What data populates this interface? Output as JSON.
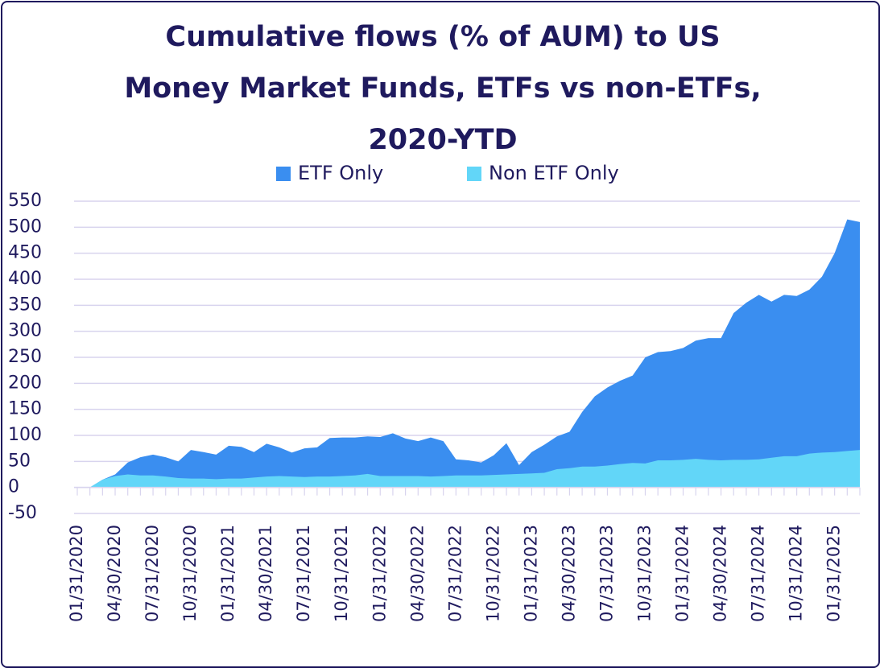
{
  "chart_data": {
    "type": "area",
    "title": "Cumulative flows (% of AUM) to US Money Market Funds, ETFs vs non-ETFs, 2020-YTD",
    "categories": [
      "01/31/2020",
      null,
      null,
      "04/30/2020",
      null,
      null,
      "07/31/2020",
      null,
      null,
      "10/31/2020",
      null,
      null,
      "01/31/2021",
      null,
      null,
      "04/30/2021",
      null,
      null,
      "07/31/2021",
      null,
      null,
      "10/31/2021",
      null,
      null,
      "01/31/2022",
      null,
      null,
      "04/30/2022",
      null,
      null,
      "07/31/2022",
      null,
      null,
      "10/31/2022",
      null,
      null,
      "01/31/2023",
      null,
      null,
      "04/30/2023",
      null,
      null,
      "07/31/2023",
      null,
      null,
      "10/31/2023",
      null,
      null,
      "01/31/2024",
      null,
      null,
      "04/30/2024",
      null,
      null,
      "07/31/2024",
      null,
      null,
      "10/31/2024",
      null,
      null,
      "01/31/2025",
      null,
      null
    ],
    "series": [
      {
        "name": "ETF Only",
        "color": "#3a8ef0",
        "values": [
          0,
          0,
          15,
          25,
          48,
          58,
          63,
          58,
          50,
          72,
          68,
          63,
          80,
          78,
          68,
          84,
          77,
          67,
          75,
          77,
          95,
          96,
          96,
          98,
          97,
          104,
          94,
          89,
          96,
          89,
          54,
          52,
          48,
          62,
          85,
          43,
          68,
          82,
          98,
          107,
          145,
          175,
          192,
          205,
          215,
          250,
          260,
          262,
          268,
          282,
          287,
          287,
          335,
          355,
          370,
          357,
          370,
          368,
          380,
          405,
          450,
          515,
          510
        ]
      },
      {
        "name": "Non ETF Only",
        "color": "#62d6f8",
        "values": [
          0,
          0,
          15,
          22,
          25,
          23,
          23,
          21,
          18,
          17,
          17,
          16,
          17,
          17,
          19,
          21,
          22,
          21,
          20,
          21,
          21,
          22,
          23,
          26,
          22,
          22,
          22,
          22,
          21,
          22,
          23,
          23,
          23,
          24,
          25,
          26,
          27,
          28,
          35,
          37,
          40,
          40,
          42,
          45,
          47,
          46,
          52,
          52,
          53,
          55,
          53,
          52,
          53,
          53,
          54,
          57,
          60,
          60,
          65,
          67,
          68,
          70,
          72
        ]
      }
    ],
    "ylim": [
      -50,
      550
    ],
    "yticks": [
      -50,
      0,
      50,
      100,
      150,
      200,
      250,
      300,
      350,
      400,
      450,
      500,
      550
    ],
    "grid": true,
    "legend": "top"
  }
}
